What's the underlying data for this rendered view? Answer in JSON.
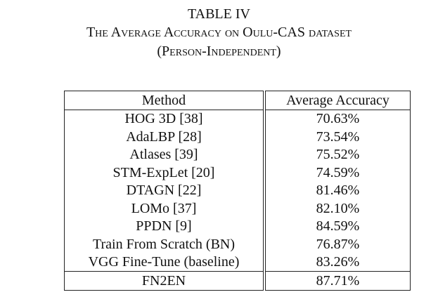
{
  "caption": {
    "number": "TABLE IV",
    "title": "The Average Accuracy on Oulu-CAS dataset",
    "subtitle": "(Person-Independent)"
  },
  "table": {
    "headers": {
      "method": "Method",
      "accuracy": "Average Accuracy"
    },
    "rows": [
      {
        "method": "HOG 3D [38]",
        "accuracy": "70.63%"
      },
      {
        "method": "AdaLBP [28]",
        "accuracy": "73.54%"
      },
      {
        "method": "Atlases [39]",
        "accuracy": "75.52%"
      },
      {
        "method": "STM-ExpLet [20]",
        "accuracy": "74.59%"
      },
      {
        "method": "DTAGN [22]",
        "accuracy": "81.46%"
      },
      {
        "method": "LOMo [37]",
        "accuracy": "82.10%"
      },
      {
        "method": "PPDN [9]",
        "accuracy": "84.59%"
      },
      {
        "method": "Train From Scratch (BN)",
        "accuracy": "76.87%"
      },
      {
        "method": "VGG Fine-Tune (baseline)",
        "accuracy": "83.26%"
      }
    ],
    "final_row": {
      "method": "FN2EN",
      "accuracy": "87.71%"
    }
  }
}
